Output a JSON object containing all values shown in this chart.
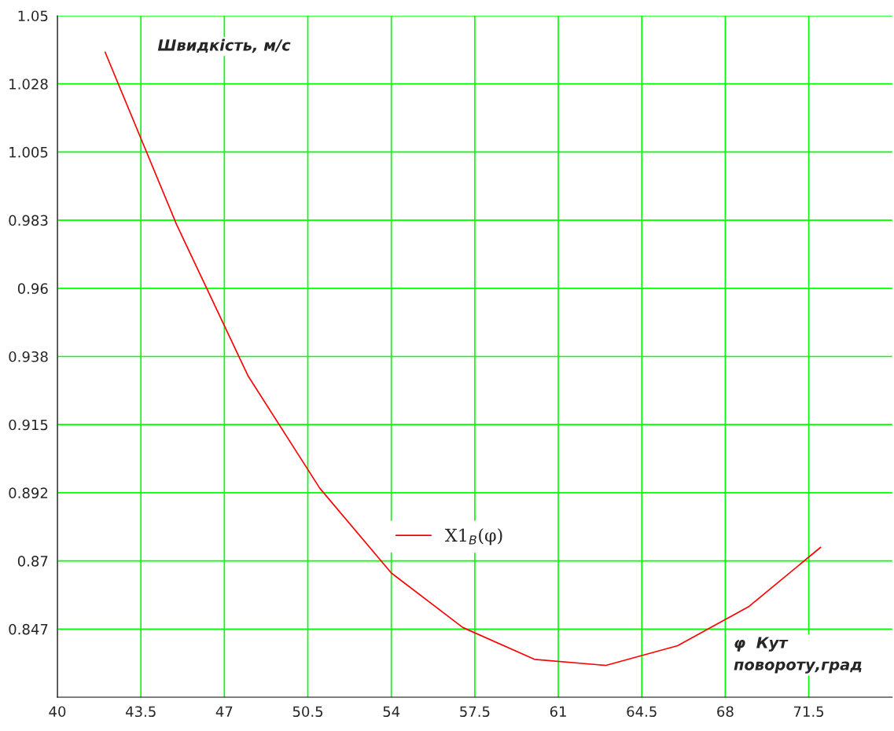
{
  "chart_data": {
    "type": "line",
    "ylabel": "Швидкість, м/с",
    "xlabel": "φ  Кут\nповороту,град",
    "x": [
      42,
      45,
      48,
      51,
      54,
      57,
      60,
      63,
      66,
      69,
      72
    ],
    "series": [
      {
        "name": "X1$_{B}$(φ)",
        "color": "#ff0000",
        "values": [
          1.038,
          0.981,
          0.931,
          0.894,
          0.866,
          0.848,
          0.8375,
          0.8355,
          0.842,
          0.855,
          0.8745
        ]
      }
    ],
    "xlim": [
      40,
      75
    ],
    "xticks": [
      40,
      43.5,
      47,
      50.5,
      54,
      57.5,
      61,
      64.5,
      68,
      71.5
    ],
    "ylim": [
      0.825,
      1.05
    ],
    "yticks": [
      {
        "value": 0.8475,
        "label": "0.847"
      },
      {
        "value": 0.87,
        "label": "0.87"
      },
      {
        "value": 0.8925,
        "label": "0.892"
      },
      {
        "value": 0.915,
        "label": "0.915"
      },
      {
        "value": 0.9375,
        "label": "0.938"
      },
      {
        "value": 0.96,
        "label": "0.96"
      },
      {
        "value": 0.9825,
        "label": "0.983"
      },
      {
        "value": 1.005,
        "label": "1.005"
      },
      {
        "value": 1.0275,
        "label": "1.028"
      },
      {
        "value": 1.05,
        "label": "1.05"
      }
    ],
    "grid": true,
    "legend": "bottom",
    "marker": "none",
    "line_style": "solid"
  }
}
